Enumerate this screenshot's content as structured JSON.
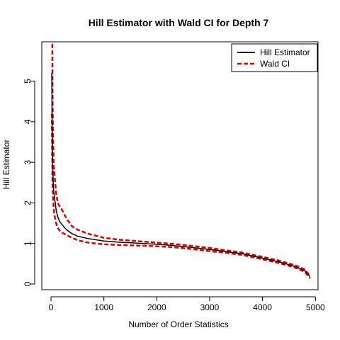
{
  "chart_data": {
    "type": "line",
    "title": "Hill Estimator with Wald CI for Depth 7",
    "xlabel": "Number of Order Statistics",
    "ylabel": "Hill Estimator",
    "xlim": [
      0,
      5000
    ],
    "ylim": [
      0,
      5.9
    ],
    "xticks": [
      "0",
      "1000",
      "2000",
      "3000",
      "4000",
      "5000"
    ],
    "yticks": [
      "0",
      "1",
      "2",
      "3",
      "4",
      "5"
    ],
    "grid": false,
    "legend_position": "top-right",
    "legend": [
      {
        "label": "Hill Estimator",
        "color": "#000000",
        "style": "solid"
      },
      {
        "label": "Wald CI",
        "color": "#e00000",
        "style": "dashed"
      }
    ],
    "series": [
      {
        "name": "Hill Estimator",
        "color": "#000000",
        "style": "solid",
        "x": [
          15,
          20,
          25,
          30,
          40,
          50,
          60,
          80,
          100,
          130,
          160,
          200,
          250,
          300,
          400,
          500,
          700,
          1000,
          1300,
          1600,
          2000,
          2300,
          2600,
          3000,
          3300,
          3600,
          4000,
          4300,
          4600,
          4800,
          4900
        ],
        "y": [
          5.2,
          4.2,
          3.5,
          3.0,
          2.6,
          2.3,
          2.2,
          2.0,
          1.8,
          1.65,
          1.55,
          1.48,
          1.4,
          1.33,
          1.24,
          1.18,
          1.12,
          1.06,
          1.03,
          1.01,
          0.98,
          0.95,
          0.91,
          0.85,
          0.8,
          0.75,
          0.64,
          0.55,
          0.44,
          0.33,
          0.18
        ]
      },
      {
        "name": "Wald CI",
        "color": "#e00000",
        "style": "dashed",
        "x": [
          15,
          20,
          25,
          30,
          40,
          50,
          60,
          80,
          100,
          130,
          160,
          200,
          250,
          300,
          400,
          500,
          700,
          1000,
          1300,
          1600,
          2000,
          2300,
          2600,
          3000,
          3300,
          3600,
          4000,
          4300,
          4600,
          4800,
          4900
        ],
        "y": [
          5.9,
          5.9,
          5.9,
          4.5,
          3.6,
          3.0,
          2.8,
          2.5,
          2.2,
          2.0,
          1.92,
          1.85,
          1.72,
          1.6,
          1.42,
          1.34,
          1.24,
          1.14,
          1.09,
          1.06,
          1.02,
          0.99,
          0.95,
          0.89,
          0.83,
          0.78,
          0.67,
          0.58,
          0.47,
          0.36,
          0.2
        ]
      },
      {
        "name": "Wald CI",
        "color": "#e00000",
        "style": "dashed",
        "x": [
          15,
          20,
          25,
          30,
          40,
          50,
          60,
          80,
          100,
          130,
          160,
          200,
          250,
          300,
          400,
          500,
          700,
          1000,
          1300,
          1600,
          2000,
          2300,
          2600,
          3000,
          3300,
          3600,
          4000,
          4300,
          4600,
          4800,
          4900
        ],
        "y": [
          4.2,
          3.4,
          2.9,
          2.4,
          2.1,
          1.9,
          1.75,
          1.6,
          1.48,
          1.38,
          1.32,
          1.27,
          1.24,
          1.2,
          1.14,
          1.08,
          1.02,
          0.98,
          0.96,
          0.95,
          0.93,
          0.91,
          0.87,
          0.81,
          0.77,
          0.72,
          0.61,
          0.52,
          0.41,
          0.3,
          0.14
        ]
      }
    ]
  }
}
